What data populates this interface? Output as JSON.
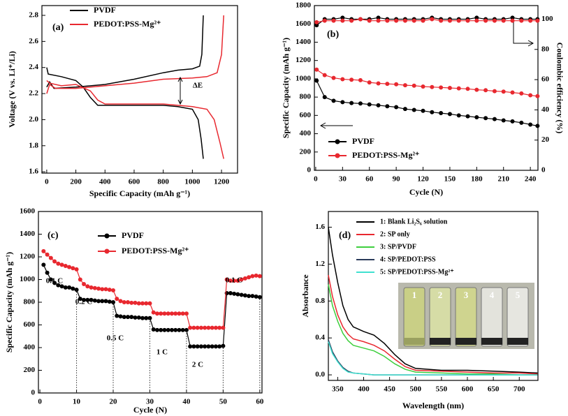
{
  "chart_data": [
    {
      "type": "line",
      "label": "(a)",
      "x_label": "Specific Capacity (mAh g⁻¹)",
      "y_label": "Voltage (V vs. Li⁺/Li)",
      "xlim": [
        -33,
        1310
      ],
      "xticks": [
        0,
        200,
        400,
        600,
        800,
        1000,
        1200
      ],
      "ylim": [
        1.59,
        2.875
      ],
      "yticks": [
        1.6,
        1.8,
        {
          "value": 2,
          "label": "2.0"
        },
        2.2,
        2.4,
        2.6,
        2.8
      ],
      "annotations": [
        "ΔE"
      ],
      "series": [
        {
          "name": "PVDF",
          "color": "#000000",
          "x": [
            0,
            10,
            100,
            200,
            250,
            300,
            350,
            400,
            600,
            800,
            900,
            1000,
            1040,
            1060,
            1075,
            null,
            0,
            20,
            50,
            200,
            400,
            600,
            800,
            900,
            1000,
            1050,
            1065,
            1075
          ],
          "values": [
            2.4,
            2.35,
            2.33,
            2.3,
            2.25,
            2.17,
            2.11,
            2.11,
            2.11,
            2.11,
            2.1,
            2.08,
            2.0,
            1.85,
            1.7,
            null,
            2.25,
            2.29,
            2.24,
            2.25,
            2.27,
            2.31,
            2.36,
            2.38,
            2.39,
            2.41,
            2.5,
            2.8
          ]
        },
        {
          "name": "PEDOT:PSS-Mg²⁺",
          "color": "#e8282f",
          "x": [
            0,
            20,
            100,
            200,
            300,
            350,
            400,
            600,
            800,
            900,
            1000,
            1100,
            1150,
            1190,
            1215,
            null,
            0,
            20,
            60,
            200,
            400,
            600,
            800,
            1000,
            1100,
            1170,
            1200,
            1215
          ],
          "values": [
            2.3,
            2.28,
            2.26,
            2.27,
            2.22,
            2.15,
            2.12,
            2.12,
            2.12,
            2.11,
            2.1,
            2.08,
            2.0,
            1.82,
            1.7,
            null,
            2.2,
            2.27,
            2.24,
            2.24,
            2.26,
            2.28,
            2.31,
            2.32,
            2.33,
            2.36,
            2.5,
            2.8
          ]
        }
      ]
    },
    {
      "type": "line",
      "label": "(b)",
      "markers": true,
      "x_label": "Cycle (N)",
      "y_label": "Specific Capacity (mAh g⁻¹)",
      "y2_label": "Coulombic efficiency (%)",
      "xlim": [
        -1.5,
        248.5
      ],
      "xticks": [
        0,
        30,
        60,
        90,
        120,
        150,
        180,
        210,
        240
      ],
      "ylim": [
        0,
        1800
      ],
      "yticks": [
        0,
        200,
        400,
        600,
        800,
        1000,
        1200,
        1400,
        1600,
        1800
      ],
      "y2lim": [
        0,
        109
      ],
      "y2ticks": [
        0,
        20,
        40,
        60,
        80,
        100
      ],
      "x": [
        1,
        10,
        20,
        30,
        40,
        50,
        60,
        70,
        80,
        90,
        100,
        110,
        120,
        130,
        140,
        150,
        160,
        170,
        180,
        190,
        200,
        210,
        220,
        230,
        240,
        248
      ],
      "series": [
        {
          "name": "PVDF",
          "color": "#000000",
          "values": [
            980,
            800,
            760,
            745,
            735,
            730,
            720,
            710,
            700,
            690,
            670,
            660,
            650,
            635,
            625,
            615,
            600,
            590,
            580,
            570,
            560,
            545,
            535,
            520,
            500,
            485
          ]
        },
        {
          "name": "PEDOT:PSS-Mg²⁺",
          "color": "#e8282f",
          "values": [
            1100,
            1040,
            1010,
            995,
            990,
            985,
            960,
            950,
            945,
            940,
            930,
            925,
            915,
            910,
            905,
            900,
            895,
            890,
            880,
            875,
            865,
            860,
            850,
            840,
            820,
            810
          ]
        },
        {
          "color": "#000000",
          "axis": "y2",
          "values": [
            96,
            100,
            100,
            101,
            100,
            100,
            100,
            101,
            100,
            100,
            100,
            100,
            100,
            101,
            100,
            100,
            100,
            100,
            101,
            100,
            100,
            100,
            101,
            100,
            100,
            100
          ]
        },
        {
          "color": "#e8282f",
          "axis": "y2",
          "values": [
            98,
            99,
            99,
            99,
            99,
            100,
            99,
            99,
            99,
            99,
            99,
            99,
            99,
            100,
            99,
            99,
            99,
            99,
            99,
            99,
            99,
            99,
            99,
            99,
            99,
            99
          ]
        }
      ]
    },
    {
      "type": "line",
      "label": "(c)",
      "markers": true,
      "x_label": "Cycle (N)",
      "y_label": "Specific Capacity (mAh g⁻¹)",
      "xlim": [
        -0.4,
        60.6
      ],
      "xticks": [
        0,
        10,
        20,
        30,
        40,
        50,
        60
      ],
      "ylim": [
        0,
        1600
      ],
      "yticks": [
        0,
        200,
        400,
        600,
        800,
        1000,
        1200,
        1400,
        1600
      ],
      "annotations": [
        "0.1 C",
        "0.2 C",
        "0.5 C",
        "1 C",
        "2 C",
        "0.1 C"
      ],
      "x": [
        1,
        2,
        3,
        4,
        5,
        6,
        7,
        8,
        9,
        10,
        11,
        12,
        13,
        14,
        15,
        16,
        17,
        18,
        19,
        20,
        21,
        22,
        23,
        24,
        25,
        26,
        27,
        28,
        29,
        30,
        31,
        32,
        33,
        34,
        35,
        36,
        37,
        38,
        39,
        40,
        41,
        42,
        43,
        44,
        45,
        46,
        47,
        48,
        49,
        50,
        51,
        52,
        53,
        54,
        55,
        56,
        57,
        58,
        59,
        60
      ],
      "series": [
        {
          "name": "PVDF",
          "color": "#000000",
          "values": [
            1130,
            1060,
            1000,
            970,
            950,
            940,
            930,
            930,
            920,
            910,
            830,
            820,
            820,
            820,
            815,
            810,
            810,
            810,
            805,
            800,
            680,
            675,
            670,
            670,
            670,
            665,
            665,
            660,
            660,
            660,
            560,
            555,
            555,
            555,
            555,
            555,
            555,
            555,
            555,
            555,
            410,
            410,
            410,
            410,
            410,
            410,
            410,
            410,
            410,
            415,
            880,
            880,
            875,
            870,
            865,
            860,
            855,
            855,
            850,
            845
          ]
        },
        {
          "name": "PEDOT:PSS-Mg²⁺",
          "color": "#e8282f",
          "values": [
            1250,
            1220,
            1190,
            1160,
            1140,
            1130,
            1120,
            1110,
            1100,
            1090,
            1000,
            960,
            940,
            930,
            925,
            920,
            915,
            915,
            910,
            905,
            830,
            810,
            800,
            800,
            795,
            795,
            790,
            790,
            790,
            790,
            710,
            700,
            700,
            700,
            700,
            700,
            700,
            700,
            700,
            700,
            575,
            575,
            575,
            575,
            575,
            575,
            575,
            575,
            575,
            575,
            1000,
            990,
            990,
            990,
            1000,
            1010,
            1020,
            1030,
            1035,
            1030
          ]
        }
      ]
    },
    {
      "type": "line",
      "label": "(d)",
      "x_label": "Wavelength (nm)",
      "y_label": "Absorbance",
      "xlim": [
        332,
        736
      ],
      "xticks": [
        350,
        400,
        450,
        500,
        550,
        600,
        650,
        700
      ],
      "ylim": [
        -0.06,
        1.77
      ],
      "yticks": [
        {
          "value": 0,
          "label": "0.0"
        },
        0.4,
        0.8,
        1.2,
        1.6
      ],
      "inset_labels": [
        "1",
        "2",
        "3",
        "4",
        "5"
      ],
      "x": [
        332,
        340,
        350,
        360,
        370,
        380,
        400,
        420,
        440,
        460,
        480,
        500,
        550,
        600,
        650,
        700,
        735
      ],
      "series": [
        {
          "name": "1: Blank Li₂S₆ solution",
          "color": "#000000",
          "values": [
            1.6,
            1.3,
            1.0,
            0.75,
            0.6,
            0.52,
            0.47,
            0.43,
            0.34,
            0.22,
            0.12,
            0.07,
            0.05,
            0.05,
            0.04,
            0.03,
            0.02
          ]
        },
        {
          "name": "2: SP only",
          "color": "#e8282f",
          "values": [
            1.08,
            0.85,
            0.65,
            0.52,
            0.44,
            0.39,
            0.36,
            0.32,
            0.26,
            0.17,
            0.09,
            0.05,
            0.04,
            0.03,
            0.02,
            0.02,
            0.01
          ]
        },
        {
          "name": "3: SP/PVDF",
          "color": "#3ecf3e",
          "values": [
            0.98,
            0.75,
            0.58,
            0.45,
            0.37,
            0.32,
            0.29,
            0.26,
            0.2,
            0.12,
            0.06,
            0.03,
            0.02,
            0.01,
            0.01,
            0,
            0
          ]
        },
        {
          "name": "4: SP/PEDOT:PSS",
          "color": "#2a3a5a",
          "values": [
            0.38,
            0.25,
            0.15,
            0.08,
            0.04,
            0.02,
            0.01,
            0,
            0,
            0,
            0,
            0,
            0,
            0,
            0,
            0,
            0
          ]
        },
        {
          "name": "5: SP/PEDOT:PSS-Mg²⁺",
          "color": "#40e0d0",
          "values": [
            0.36,
            0.23,
            0.14,
            0.07,
            0.03,
            0.02,
            0.01,
            0,
            0,
            0,
            0,
            0,
            0,
            0,
            0,
            0,
            0
          ]
        }
      ]
    }
  ]
}
